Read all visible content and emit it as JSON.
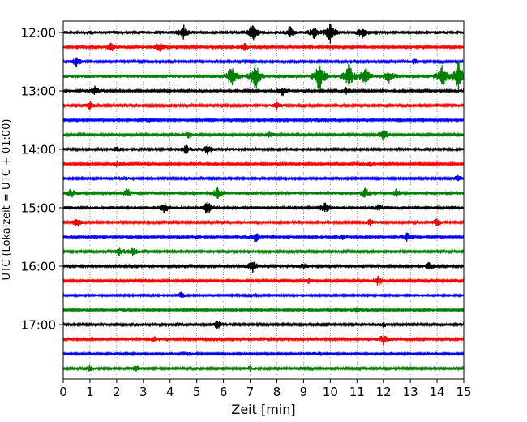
{
  "chart_data": {
    "type": "line",
    "title": "",
    "xlabel": "Zeit  [min]",
    "ylabel": "UTC (Lokalzeit = UTC + 01:00)",
    "xlim": [
      0,
      15
    ],
    "x_ticks": [
      0,
      1,
      2,
      3,
      4,
      5,
      6,
      7,
      8,
      9,
      10,
      11,
      12,
      13,
      14,
      15
    ],
    "x_tick_labels": [
      "0",
      "1",
      "2",
      "3",
      "4",
      "5",
      "6",
      "7",
      "8",
      "9",
      "10",
      "11",
      "12",
      "13",
      "14",
      "15"
    ],
    "y_tick_labels": [
      "12:00",
      "13:00",
      "14:00",
      "15:00",
      "16:00",
      "17:00"
    ],
    "trace_interval_min": 15,
    "start_time": "12:00",
    "grid": "vertical dotted",
    "color_cycle": [
      "#000000",
      "#ff0000",
      "#0000ff",
      "#008000"
    ],
    "traces": [
      {
        "start": "12:00",
        "color": "#000000",
        "amplitude": 0.3,
        "bursts": [
          [
            4.5,
            1.2
          ],
          [
            7.1,
            1.5
          ],
          [
            8.5,
            0.9
          ],
          [
            9.4,
            1.0
          ],
          [
            10.0,
            1.6
          ],
          [
            11.2,
            0.9
          ]
        ]
      },
      {
        "start": "12:15",
        "color": "#ff0000",
        "amplitude": 0.25,
        "bursts": [
          [
            1.8,
            0.8
          ],
          [
            3.6,
            0.9
          ],
          [
            6.8,
            0.6
          ]
        ]
      },
      {
        "start": "12:30",
        "color": "#0000ff",
        "amplitude": 0.22,
        "bursts": [
          [
            0.5,
            1.2
          ],
          [
            13.2,
            0.6
          ]
        ]
      },
      {
        "start": "12:45",
        "color": "#008000",
        "amplitude": 0.35,
        "bursts": [
          [
            6.3,
            1.5
          ],
          [
            7.2,
            2.0
          ],
          [
            9.6,
            2.5
          ],
          [
            10.7,
            2.0
          ],
          [
            11.3,
            1.3
          ],
          [
            12.2,
            0.9
          ],
          [
            14.2,
            1.6
          ],
          [
            14.8,
            2.2
          ]
        ]
      },
      {
        "start": "13:00",
        "color": "#000000",
        "amplitude": 0.25,
        "bursts": [
          [
            1.2,
            0.9
          ],
          [
            8.2,
            1.0
          ],
          [
            10.6,
            0.6
          ]
        ]
      },
      {
        "start": "13:15",
        "color": "#ff0000",
        "amplitude": 0.22,
        "bursts": [
          [
            1.0,
            0.8
          ],
          [
            8.0,
            0.8
          ]
        ]
      },
      {
        "start": "13:30",
        "color": "#0000ff",
        "amplitude": 0.2,
        "bursts": [
          [
            3.2,
            0.5
          ],
          [
            9.6,
            0.5
          ]
        ]
      },
      {
        "start": "13:45",
        "color": "#008000",
        "amplitude": 0.25,
        "bursts": [
          [
            4.7,
            0.6
          ],
          [
            7.7,
            0.5
          ],
          [
            12.0,
            1.1
          ]
        ]
      },
      {
        "start": "14:00",
        "color": "#000000",
        "amplitude": 0.25,
        "bursts": [
          [
            4.6,
            0.8
          ],
          [
            5.4,
            1.0
          ],
          [
            2.0,
            0.5
          ]
        ]
      },
      {
        "start": "14:15",
        "color": "#ff0000",
        "amplitude": 0.2,
        "bursts": [
          [
            2.0,
            0.5
          ],
          [
            11.5,
            0.6
          ]
        ]
      },
      {
        "start": "14:30",
        "color": "#0000ff",
        "amplitude": 0.2,
        "bursts": [
          [
            2.3,
            0.5
          ],
          [
            14.8,
            0.9
          ]
        ]
      },
      {
        "start": "14:45",
        "color": "#008000",
        "amplitude": 0.3,
        "bursts": [
          [
            0.3,
            0.6
          ],
          [
            2.4,
            0.6
          ],
          [
            5.8,
            1.0
          ],
          [
            11.3,
            0.8
          ],
          [
            12.5,
            0.6
          ]
        ]
      },
      {
        "start": "15:00",
        "color": "#000000",
        "amplitude": 0.3,
        "bursts": [
          [
            3.8,
            0.8
          ],
          [
            5.4,
            1.1
          ],
          [
            9.8,
            0.9
          ],
          [
            11.8,
            0.6
          ]
        ]
      },
      {
        "start": "15:15",
        "color": "#ff0000",
        "amplitude": 0.22,
        "bursts": [
          [
            0.5,
            0.9
          ],
          [
            11.5,
            0.7
          ],
          [
            14.0,
            0.8
          ]
        ]
      },
      {
        "start": "15:30",
        "color": "#0000ff",
        "amplitude": 0.25,
        "bursts": [
          [
            7.2,
            1.0
          ],
          [
            12.9,
            0.9
          ],
          [
            10.5,
            0.5
          ]
        ]
      },
      {
        "start": "15:45",
        "color": "#008000",
        "amplitude": 0.22,
        "bursts": [
          [
            2.1,
            1.0
          ],
          [
            2.6,
            1.1
          ]
        ]
      },
      {
        "start": "16:00",
        "color": "#000000",
        "amplitude": 0.25,
        "bursts": [
          [
            7.1,
            1.2
          ],
          [
            13.7,
            0.9
          ],
          [
            9.0,
            0.5
          ]
        ]
      },
      {
        "start": "16:15",
        "color": "#ff0000",
        "amplitude": 0.22,
        "bursts": [
          [
            11.8,
            1.1
          ],
          [
            9.2,
            0.5
          ]
        ]
      },
      {
        "start": "16:30",
        "color": "#0000ff",
        "amplitude": 0.18,
        "bursts": [
          [
            4.4,
            0.8
          ],
          [
            7.2,
            0.4
          ]
        ]
      },
      {
        "start": "16:45",
        "color": "#008000",
        "amplitude": 0.2,
        "bursts": [
          [
            2.3,
            0.5
          ],
          [
            11.0,
            0.7
          ]
        ]
      },
      {
        "start": "17:00",
        "color": "#000000",
        "amplitude": 0.22,
        "bursts": [
          [
            5.8,
            1.1
          ],
          [
            4.3,
            0.5
          ],
          [
            12.0,
            0.5
          ]
        ]
      },
      {
        "start": "17:15",
        "color": "#ff0000",
        "amplitude": 0.22,
        "bursts": [
          [
            12.0,
            1.3
          ],
          [
            3.4,
            0.5
          ]
        ]
      },
      {
        "start": "17:30",
        "color": "#0000ff",
        "amplitude": 0.18,
        "bursts": [
          [
            4.7,
            0.5
          ],
          [
            9.4,
            0.4
          ]
        ]
      },
      {
        "start": "17:45",
        "color": "#008000",
        "amplitude": 0.22,
        "bursts": [
          [
            1.0,
            0.6
          ],
          [
            2.7,
            0.8
          ],
          [
            7.0,
            0.5
          ]
        ]
      }
    ]
  }
}
